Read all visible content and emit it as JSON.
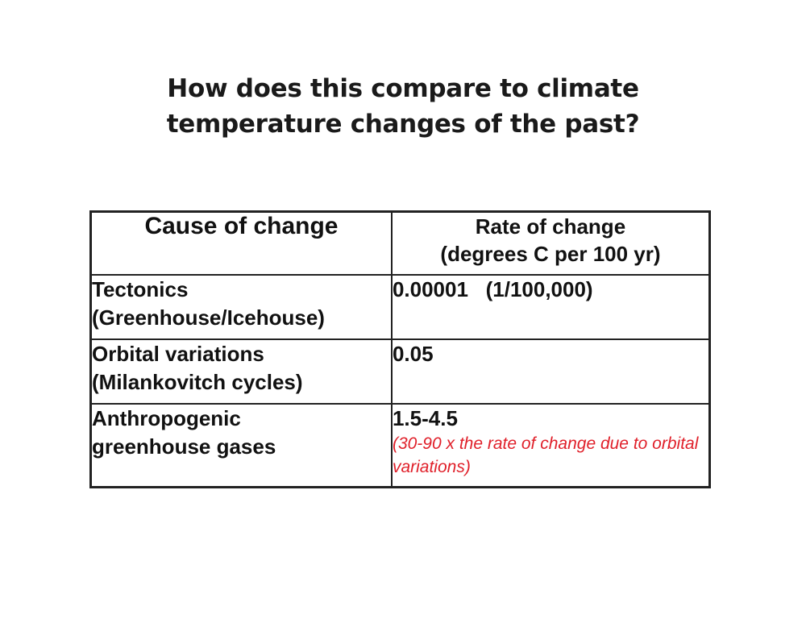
{
  "slide": {
    "title_line1": "How does this compare to climate",
    "title_line2": "temperature changes of the past?"
  },
  "table": {
    "headers": {
      "cause": "Cause of change",
      "rate_line1": "Rate of change",
      "rate_line2": "(degrees C per 100 yr)"
    },
    "rows": [
      {
        "cause_line1": "Tectonics",
        "cause_line2": "(Greenhouse/Icehouse)",
        "rate": "0.00001   (1/100,000)"
      },
      {
        "cause_line1": "Orbital variations",
        "cause_line2": "(Milankovitch cycles)",
        "rate": "0.05"
      },
      {
        "cause_line1": "Anthropogenic",
        "cause_line2": "greenhouse gases",
        "rate": "1.5-4.5",
        "note": "(30-90 x the rate of change due to orbital variations)"
      }
    ]
  },
  "colors": {
    "note_text": "#e0202a",
    "border": "#222222",
    "text": "#111111"
  }
}
